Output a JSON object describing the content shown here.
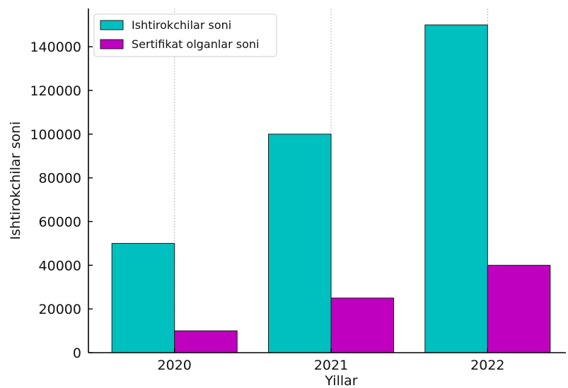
{
  "chart_data": {
    "type": "bar",
    "categories": [
      "2020",
      "2021",
      "2022"
    ],
    "series": [
      {
        "name": "Ishtirokchilar soni",
        "values": [
          50000,
          100000,
          150000
        ],
        "color": "#00bfbf"
      },
      {
        "name": "Sertifikat olganlar soni",
        "values": [
          10000,
          25000,
          40000
        ],
        "color": "#bf00bf"
      }
    ],
    "xlabel": "Yillar",
    "ylabel": "Ishtirokchilar soni",
    "ylim": [
      0,
      157500
    ],
    "yticks": [
      "0",
      "20000",
      "40000",
      "60000",
      "80000",
      "100000",
      "120000",
      "140000"
    ],
    "grid": "vertical dashed at category positions",
    "legend": "top-left"
  }
}
